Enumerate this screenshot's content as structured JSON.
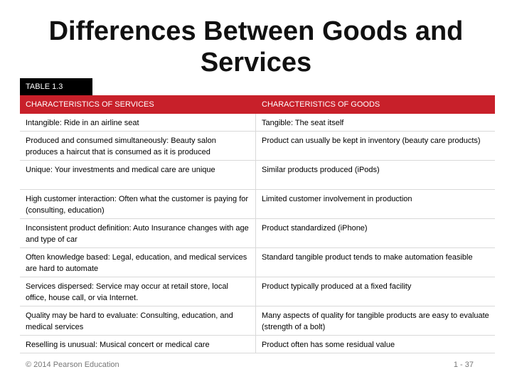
{
  "slide": {
    "title": "Differences Between Goods and Services"
  },
  "table": {
    "tag": "TABLE 1.3",
    "headers": [
      "CHARACTERISTICS OF SERVICES",
      "CHARACTERISTICS OF GOODS"
    ],
    "rows": [
      [
        "Intangible: Ride in an airline seat",
        "Tangible: The seat itself"
      ],
      [
        "Produced and consumed simultaneously: Beauty salon produces a haircut that is consumed as it is produced",
        "Product can usually be kept in inventory (beauty care products)"
      ],
      [
        "Unique: Your investments and medical care are unique",
        "Similar products produced (iPods)"
      ],
      [
        "High customer interaction: Often what the customer is paying for (consulting, education)",
        "Limited customer involvement in production"
      ],
      [
        "Inconsistent product definition: Auto Insurance changes with age and type of car",
        "Product standardized (iPhone)"
      ],
      [
        "Often knowledge based: Legal, education, and medical services are hard to automate",
        "Standard tangible product tends to make automation feasible"
      ],
      [
        "Services dispersed: Service may occur at retail store, local office, house call, or via Internet.",
        "Product typically produced at a fixed facility"
      ],
      [
        "Quality may be hard to evaluate: Consulting, education, and medical services",
        "Many aspects of quality for tangible products are easy to evaluate (strength of a bolt)"
      ],
      [
        "Reselling is unusual: Musical concert or medical care",
        "Product often has some residual value"
      ]
    ]
  },
  "footer": {
    "copyright": "© 2014 Pearson Education",
    "page": "1 - 37"
  },
  "colors": {
    "header_bg": "#c8202a",
    "tag_bg": "#000000"
  }
}
